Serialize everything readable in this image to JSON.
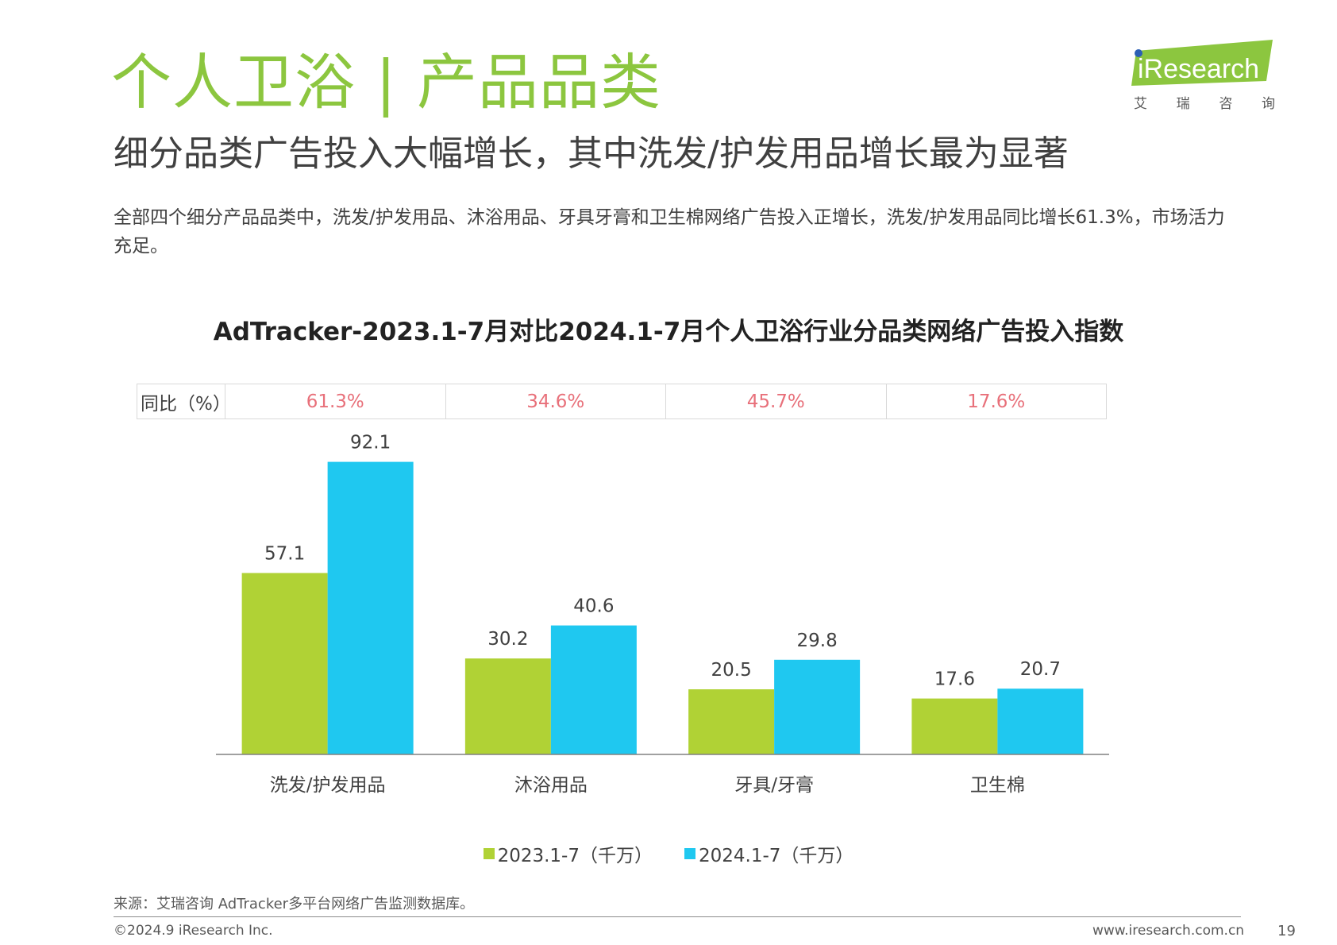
{
  "header": {
    "title_main": "个人卫浴",
    "title_sep": "|",
    "title_sub": "产品品类",
    "subtitle": "细分品类广告投入大幅增长，其中洗发/护发用品增长最为显著",
    "description": "全部四个细分产品品类中，洗发/护发用品、沐浴用品、牙具牙膏和卫生棉网络广告投入正增长，洗发/护发用品同比增长61.3%，市场活力充足。"
  },
  "logo": {
    "text": "iResearch",
    "cn_chars": [
      "艾",
      "瑞",
      "咨",
      "询"
    ]
  },
  "yoy": {
    "label": "同比（%）",
    "values": [
      "61.3%",
      "34.6%",
      "45.7%",
      "17.6%"
    ]
  },
  "chart_data": {
    "type": "bar",
    "title": "AdTracker-2023.1-7月对比2024.1-7月个人卫浴行业分品类网络广告投入指数",
    "categories": [
      "洗发/护发用品",
      "沐浴用品",
      "牙具/牙膏",
      "卫生棉"
    ],
    "series": [
      {
        "name": "2023.1-7（千万）",
        "color": "#b0d235",
        "values": [
          57.1,
          30.2,
          20.5,
          17.6
        ]
      },
      {
        "name": "2024.1-7（千万）",
        "color": "#1fc8f0",
        "values": [
          92.1,
          40.6,
          29.8,
          20.7
        ]
      }
    ],
    "ylim": [
      0,
      100
    ],
    "grid": false,
    "legend_position": "bottom"
  },
  "footer": {
    "source": "来源：艾瑞咨询 AdTracker多平台网络广告监测数据库。",
    "copyright": "©2024.9 iResearch Inc.",
    "website": "www.iresearch.com.cn",
    "page_number": "19"
  }
}
